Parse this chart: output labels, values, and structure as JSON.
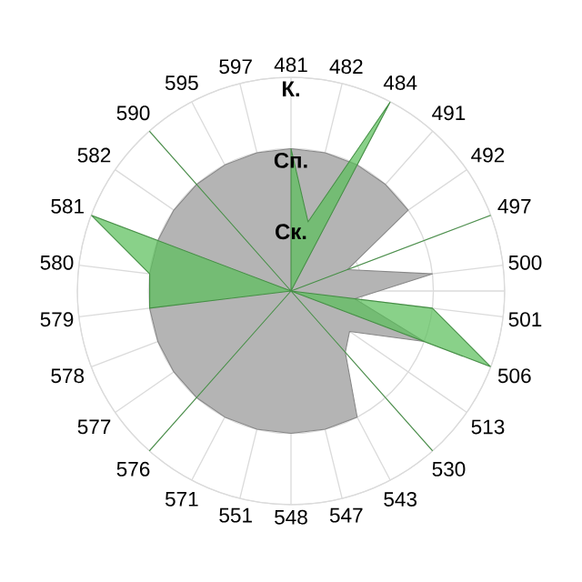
{
  "chart_data": {
    "type": "radar",
    "categories": [
      "481",
      "482",
      "484",
      "491",
      "492",
      "497",
      "500",
      "501",
      "506",
      "513",
      "530",
      "543",
      "547",
      "548",
      "551",
      "571",
      "576",
      "577",
      "578",
      "579",
      "580",
      "581",
      "582",
      "590",
      "595",
      "597"
    ],
    "series": [
      {
        "color": "#b4b4b4",
        "values": [
          2,
          2,
          2,
          2,
          2,
          0.85,
          2,
          0.9,
          2,
          1,
          1.15,
          2,
          2,
          2,
          2,
          2,
          2,
          2,
          2,
          2,
          2,
          2,
          2,
          2,
          2,
          2
        ]
      },
      {
        "color": "#5cbf5c",
        "values": [
          2,
          1,
          3,
          0,
          0,
          3,
          0,
          2,
          3,
          0,
          3,
          0,
          0,
          0,
          0,
          0,
          3,
          0,
          0,
          2,
          2,
          3,
          0,
          3,
          0,
          0
        ]
      }
    ],
    "ylim": [
      0,
      3
    ],
    "yticks": [
      {
        "value": 1,
        "label": "Ск."
      },
      {
        "value": 2,
        "label": "Сп."
      },
      {
        "value": 3,
        "label": "К."
      }
    ],
    "grid": true
  }
}
